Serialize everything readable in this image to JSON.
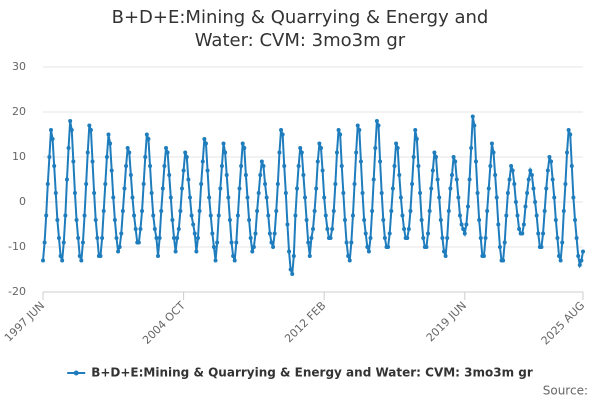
{
  "chart_data": {
    "type": "line",
    "title": "B+D+E:Mining & Quarrying & Energy and Water: CVM: 3mo3m gr",
    "source": "Source:",
    "categories": [
      "1997 JUN",
      null,
      null,
      null,
      null,
      null,
      null,
      null,
      null,
      null,
      null,
      null,
      null,
      null,
      null,
      null,
      null,
      null,
      null,
      null,
      null,
      null,
      null,
      null,
      null,
      null,
      null,
      null,
      null,
      null,
      null,
      null,
      null,
      null,
      null,
      null,
      null,
      null,
      null,
      null,
      null,
      null,
      null,
      null,
      null,
      null,
      null,
      null,
      null,
      null,
      null,
      null,
      null,
      null,
      null,
      null,
      null,
      null,
      null,
      null,
      null,
      null,
      null,
      null,
      null,
      null,
      null,
      null,
      null,
      null,
      null,
      null,
      null,
      null,
      null,
      null,
      null,
      null,
      null,
      null,
      null,
      null,
      null,
      null,
      null,
      null,
      null,
      null,
      "2004 OCT",
      null,
      null,
      null,
      null,
      null,
      null,
      null,
      null,
      null,
      null,
      null,
      null,
      null,
      null,
      null,
      null,
      null,
      null,
      null,
      null,
      null,
      null,
      null,
      null,
      null,
      null,
      null,
      null,
      null,
      null,
      null,
      null,
      null,
      null,
      null,
      null,
      null,
      null,
      null,
      null,
      null,
      null,
      null,
      null,
      null,
      null,
      null,
      null,
      null,
      null,
      null,
      null,
      null,
      null,
      null,
      null,
      null,
      null,
      null,
      null,
      null,
      null,
      null,
      null,
      null,
      null,
      null,
      null,
      null,
      null,
      null,
      null,
      null,
      null,
      null,
      null,
      null,
      null,
      null,
      null,
      null,
      null,
      null,
      null,
      null,
      null,
      null,
      "2012 FEB",
      null,
      null,
      null,
      null,
      null,
      null,
      null,
      null,
      null,
      null,
      null,
      null,
      null,
      null,
      null,
      null,
      null,
      null,
      null,
      null,
      null,
      null,
      null,
      null,
      null,
      null,
      null,
      null,
      null,
      null,
      null,
      null,
      null,
      null,
      null,
      null,
      null,
      null,
      null,
      null,
      null,
      null,
      null,
      null,
      null,
      null,
      null,
      null,
      null,
      null,
      null,
      null,
      null,
      null,
      null,
      null,
      null,
      null,
      null,
      null,
      null,
      null,
      null,
      null,
      null,
      null,
      null,
      null,
      null,
      null,
      null,
      null,
      null,
      null,
      null,
      null,
      null,
      null,
      null,
      null,
      null,
      null,
      null,
      null,
      null,
      null,
      null,
      "2019 JUN",
      null,
      null,
      null,
      null,
      null,
      null,
      null,
      null,
      null,
      null,
      null,
      null,
      null,
      null,
      null,
      null,
      null,
      null,
      null,
      null,
      null,
      null,
      null,
      null,
      null,
      null,
      null,
      null,
      null,
      null,
      null,
      null,
      null,
      null,
      null,
      null,
      null,
      null,
      null,
      null,
      null,
      null,
      null,
      null,
      null,
      null,
      null,
      null,
      null,
      null,
      null,
      null,
      null,
      null,
      null,
      null,
      null,
      null,
      null,
      null,
      null,
      null,
      null,
      null,
      null,
      null,
      null,
      null,
      null,
      null,
      null,
      null,
      null,
      "2025 AUG"
    ],
    "series": [
      {
        "name": "B+D+E:Mining & Quarrying & Energy and Water: CVM: 3mo3m gr",
        "color": "#1f7dbd",
        "values": [
          -13,
          -9,
          -3,
          4,
          10,
          16,
          14,
          8,
          2,
          -4,
          -8,
          -12,
          -13,
          -9,
          -3,
          5,
          12,
          18,
          16,
          9,
          2,
          -4,
          -8,
          -12,
          -13,
          -9,
          -3,
          4,
          11,
          17,
          16,
          9,
          2,
          -4,
          -8,
          -12,
          -12,
          -8,
          -2,
          4,
          10,
          15,
          13,
          7,
          1,
          -4,
          -8,
          -11,
          -10,
          -7,
          -2,
          3,
          8,
          12,
          11,
          6,
          1,
          -3,
          -6,
          -9,
          -9,
          -6,
          -2,
          4,
          10,
          15,
          14,
          8,
          2,
          -3,
          -6,
          -8,
          -12,
          -8,
          -2,
          3,
          8,
          12,
          11,
          6,
          1,
          -4,
          -8,
          -11,
          -8,
          -6,
          -2,
          3,
          7,
          11,
          10,
          5,
          1,
          -3,
          -5,
          -7,
          -11,
          -8,
          -2,
          4,
          9,
          14,
          13,
          7,
          1,
          -3,
          -7,
          -10,
          -13,
          -9,
          -3,
          3,
          8,
          13,
          11,
          6,
          1,
          -4,
          -9,
          -12,
          -13,
          -9,
          -3,
          3,
          8,
          13,
          12,
          6,
          1,
          -4,
          -8,
          -11,
          -10,
          -7,
          -2,
          2,
          6,
          9,
          8,
          4,
          1,
          -3,
          -7,
          -9,
          -10,
          -7,
          -2,
          4,
          11,
          16,
          15,
          8,
          2,
          -5,
          -11,
          -15,
          -16,
          -12,
          -3,
          3,
          8,
          12,
          11,
          6,
          1,
          -4,
          -9,
          -12,
          -8,
          -6,
          -2,
          3,
          9,
          13,
          12,
          7,
          1,
          -3,
          -6,
          -8,
          -8,
          -6,
          -2,
          4,
          11,
          16,
          15,
          8,
          2,
          -4,
          -9,
          -12,
          -13,
          -9,
          -3,
          4,
          11,
          17,
          16,
          9,
          2,
          -4,
          -7,
          -10,
          -11,
          -8,
          -2,
          5,
          12,
          18,
          17,
          9,
          2,
          -4,
          -8,
          -10,
          -10,
          -7,
          -2,
          3,
          8,
          13,
          12,
          6,
          1,
          -3,
          -6,
          -8,
          -8,
          -6,
          -2,
          4,
          10,
          16,
          14,
          8,
          2,
          -4,
          -8,
          -10,
          -10,
          -7,
          -2,
          3,
          7,
          11,
          10,
          5,
          1,
          -4,
          -8,
          -11,
          -12,
          -8,
          -2,
          3,
          6,
          10,
          9,
          5,
          1,
          -3,
          -5,
          -6,
          -7,
          -5,
          -1,
          5,
          12,
          19,
          17,
          9,
          2,
          -4,
          -8,
          -12,
          -12,
          -8,
          -2,
          3,
          8,
          13,
          11,
          6,
          1,
          -5,
          -10,
          -13,
          -13,
          -9,
          -3,
          2,
          5,
          8,
          7,
          4,
          0,
          -3,
          -6,
          -7,
          -7,
          -5,
          -1,
          2,
          5,
          7,
          6,
          3,
          0,
          -3,
          -7,
          -10,
          -10,
          -7,
          -2,
          3,
          7,
          10,
          9,
          5,
          1,
          -4,
          -8,
          -12,
          -13,
          -9,
          -2,
          4,
          11,
          16,
          15,
          8,
          1,
          -4,
          -8,
          -12,
          -14,
          -13,
          -11
        ]
      }
    ],
    "ylim": [
      -20,
      30
    ],
    "yticks": [
      -20,
      -10,
      0,
      10,
      20,
      30
    ],
    "grid": true,
    "legend": "bottom"
  }
}
